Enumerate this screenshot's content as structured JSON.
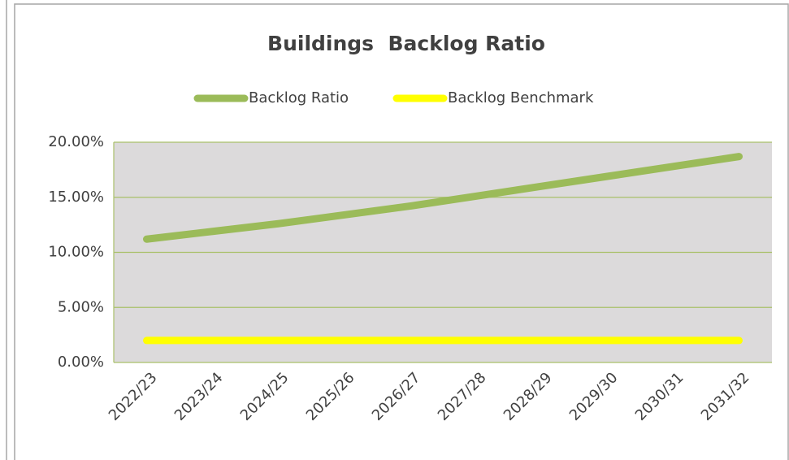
{
  "chart_data": {
    "type": "line",
    "title": "Buildings  Backlog Ratio",
    "categories": [
      "2022/23",
      "2023/24",
      "2024/25",
      "2025/26",
      "2026/27",
      "2027/28",
      "2028/29",
      "2029/30",
      "2030/31",
      "2031/32"
    ],
    "series": [
      {
        "name": "Backlog Ratio",
        "color": "#9bbb59",
        "values": [
          11.2,
          11.9,
          12.6,
          13.4,
          14.2,
          15.1,
          16.0,
          16.9,
          17.8,
          18.7
        ]
      },
      {
        "name": "Backlog Benchmark",
        "color": "#ffff00",
        "values": [
          2,
          2,
          2,
          2,
          2,
          2,
          2,
          2,
          2,
          2
        ]
      }
    ],
    "ylim": [
      0,
      20
    ],
    "yticks": [
      {
        "value": 0,
        "label": "0.00%"
      },
      {
        "value": 5,
        "label": "5.00%"
      },
      {
        "value": 10,
        "label": "10.00%"
      },
      {
        "value": 15,
        "label": "15.00%"
      },
      {
        "value": 20,
        "label": "20.00%"
      }
    ],
    "grid": true
  }
}
